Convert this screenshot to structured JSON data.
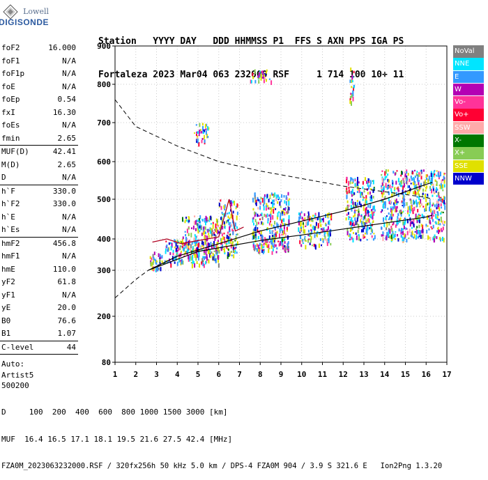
{
  "logo": {
    "brand_top": "Lowell",
    "brand_bottom": "DIGISONDE"
  },
  "header": {
    "line1": "Station   YYYY DAY   DDD HHMMSS P1  FFS S AXN PPS IGA PS",
    "line2": "Fortaleza 2023 Mar04 063 232000 RSF     1 714 100 10+ 11"
  },
  "params": [
    {
      "label": "foF2",
      "value": "16.000"
    },
    {
      "label": "foF1",
      "value": "N/A"
    },
    {
      "label": "foF1p",
      "value": "N/A"
    },
    {
      "label": "foE",
      "value": "N/A"
    },
    {
      "label": "foEp",
      "value": "0.54"
    },
    {
      "label": "fxI",
      "value": "16.30"
    },
    {
      "label": "foEs",
      "value": "N/A"
    },
    {
      "label": "fmin",
      "value": "2.65"
    },
    {
      "label": "MUF(D)",
      "value": "42.41"
    },
    {
      "label": "M(D)",
      "value": "2.65"
    },
    {
      "label": "D",
      "value": "N/A"
    },
    {
      "label": "h`F",
      "value": "330.0"
    },
    {
      "label": "h`F2",
      "value": "330.0"
    },
    {
      "label": "h`E",
      "value": "N/A"
    },
    {
      "label": "h`Es",
      "value": "N/A"
    },
    {
      "label": "hmF2",
      "value": "456.8"
    },
    {
      "label": "hmF1",
      "value": "N/A"
    },
    {
      "label": "hmE",
      "value": "110.0"
    },
    {
      "label": "yF2",
      "value": "61.8"
    },
    {
      "label": "yF1",
      "value": "N/A"
    },
    {
      "label": "yE",
      "value": "20.0"
    },
    {
      "label": "B0",
      "value": "76.6"
    },
    {
      "label": "B1",
      "value": "1.07"
    },
    {
      "label": "C-level",
      "value": "44"
    }
  ],
  "auto": {
    "line1": "Auto:",
    "line2": "Artist5",
    "line3": "500200"
  },
  "legend": [
    {
      "label": "NoVal",
      "color": "#808080"
    },
    {
      "label": "NNE",
      "color": "#00e5ff"
    },
    {
      "label": "E",
      "color": "#3399ff"
    },
    {
      "label": "W",
      "color": "#b400b4"
    },
    {
      "label": "Vo-",
      "color": "#ff3399"
    },
    {
      "label": "Vo+",
      "color": "#ff0033"
    },
    {
      "label": "SSW",
      "color": "#ffaaaa"
    },
    {
      "label": "X-",
      "color": "#007700"
    },
    {
      "label": "X+",
      "color": "#88cc55"
    },
    {
      "label": "SSE",
      "color": "#e0e000"
    },
    {
      "label": "NNW",
      "color": "#0000cc"
    }
  ],
  "footer": {
    "line1": "D     100  200  400  600  800 1000 1500 3000 [km]",
    "line2": "MUF  16.4 16.5 17.1 18.1 19.5 21.6 27.5 42.4 [MHz]",
    "line3": "FZA0M_2023063232000.RSF / 320fx256h 50 kHz 5.0 km / DPS-4 FZA0M 904 / 3.9 S 321.6 E   Ion2Png 1.3.20"
  },
  "chart_data": {
    "type": "scatter",
    "x_ticks": [
      "1",
      "2",
      "3",
      "4",
      "5",
      "6",
      "7",
      "8",
      "9",
      "10",
      "11",
      "12",
      "13",
      "14",
      "15",
      "16",
      "17"
    ],
    "y_ticks": [
      "80",
      "200",
      "300",
      "400",
      "500",
      "600",
      "700",
      "800",
      "900"
    ],
    "xlim": [
      1,
      17
    ],
    "ylim_label": [
      80,
      900
    ],
    "y_scale": "nonlinear",
    "grid": true,
    "ionogram_clusters": [
      {
        "fmin": 2.6,
        "fmax": 3.4,
        "hmin": 300,
        "hmax": 360
      },
      {
        "fmin": 3.4,
        "fmax": 6.0,
        "hmin": 320,
        "hmax": 400
      },
      {
        "fmin": 4.2,
        "fmax": 6.0,
        "hmin": 340,
        "hmax": 460
      },
      {
        "fmin": 6.0,
        "fmax": 6.9,
        "hmin": 350,
        "hmax": 500
      },
      {
        "fmin": 7.6,
        "fmax": 9.4,
        "hmin": 360,
        "hmax": 520
      },
      {
        "fmin": 9.8,
        "fmax": 11.4,
        "hmin": 380,
        "hmax": 470
      },
      {
        "fmin": 12.1,
        "fmax": 13.5,
        "hmin": 400,
        "hmax": 560
      },
      {
        "fmin": 13.8,
        "fmax": 16.9,
        "hmin": 400,
        "hmax": 580
      },
      {
        "fmin": 4.8,
        "fmax": 5.5,
        "hmin": 650,
        "hmax": 700
      },
      {
        "fmin": 7.5,
        "fmax": 8.5,
        "hmin": 810,
        "hmax": 840
      },
      {
        "fmin": 12.3,
        "fmax": 12.5,
        "hmin": 750,
        "hmax": 860
      }
    ],
    "profile_line": [
      [
        2.6,
        300
      ],
      [
        4,
        345
      ],
      [
        6,
        385
      ],
      [
        8,
        420
      ],
      [
        10,
        445
      ],
      [
        12,
        470
      ],
      [
        14,
        500
      ],
      [
        15.5,
        530
      ],
      [
        16.3,
        545
      ]
    ],
    "lower_trace": [
      [
        2.6,
        300
      ],
      [
        5,
        360
      ],
      [
        8,
        395
      ],
      [
        10,
        410
      ],
      [
        12,
        425
      ],
      [
        14,
        440
      ],
      [
        16,
        455
      ],
      [
        16.3,
        460
      ]
    ],
    "muf_curve": [
      [
        1,
        760
      ],
      [
        2,
        690
      ],
      [
        4,
        640
      ],
      [
        6,
        600
      ],
      [
        8,
        575
      ],
      [
        10,
        555
      ],
      [
        12,
        535
      ],
      [
        14,
        520
      ],
      [
        16,
        505
      ],
      [
        16.3,
        500
      ]
    ],
    "muf_lower": [
      [
        1,
        240
      ],
      [
        1.5,
        260
      ],
      [
        2,
        280
      ],
      [
        2.6,
        300
      ]
    ],
    "red_trace": [
      [
        2.8,
        390
      ],
      [
        3.5,
        400
      ],
      [
        4.2,
        385
      ],
      [
        5,
        395
      ],
      [
        6,
        405
      ],
      [
        6.5,
        500
      ],
      [
        6.8,
        420
      ],
      [
        7.2,
        430
      ]
    ]
  }
}
